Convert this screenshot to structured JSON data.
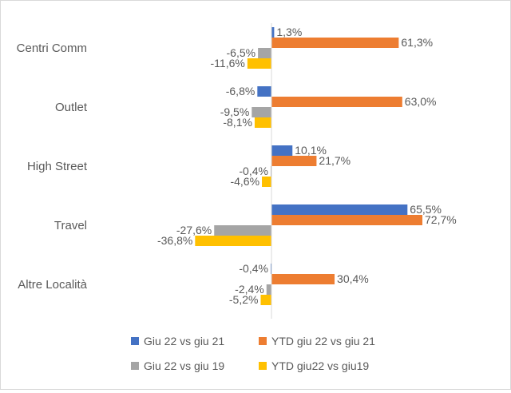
{
  "chart_data": {
    "type": "bar",
    "orientation": "horizontal",
    "categories": [
      "Centri Comm",
      "Outlet",
      "High Street",
      "Travel",
      "Altre Località"
    ],
    "series": [
      {
        "name": "Giu 22 vs giu 21",
        "color": "#4472c4",
        "values": [
          1.3,
          -6.8,
          10.1,
          65.5,
          -0.4
        ],
        "labels": [
          "1,3%",
          "-6,8%",
          "10,1%",
          "65,5%",
          "-0,4%"
        ]
      },
      {
        "name": "YTD giu 22 vs giu 21",
        "color": "#ed7d31",
        "values": [
          61.3,
          63.0,
          21.7,
          72.7,
          30.4
        ],
        "labels": [
          "61,3%",
          "63,0%",
          "21,7%",
          "72,7%",
          "30,4%"
        ]
      },
      {
        "name": "Giu 22 vs giu 19",
        "color": "#a5a5a5",
        "values": [
          -6.5,
          -9.5,
          -0.4,
          -27.6,
          -2.4
        ],
        "labels": [
          "-6,5%",
          "-9,5%",
          "-0,4%",
          "-27,6%",
          "-2,4%"
        ]
      },
      {
        "name": "YTD giu22 vs giu19",
        "color": "#ffc000",
        "values": [
          -11.6,
          -8.1,
          -4.6,
          -36.8,
          -5.2
        ],
        "labels": [
          "-11,6%",
          "-8,1%",
          "-4,6%",
          "-36,8%",
          "-5,2%"
        ]
      }
    ],
    "xlim": [
      -40,
      80
    ],
    "grid": false,
    "legend_position": "bottom"
  }
}
